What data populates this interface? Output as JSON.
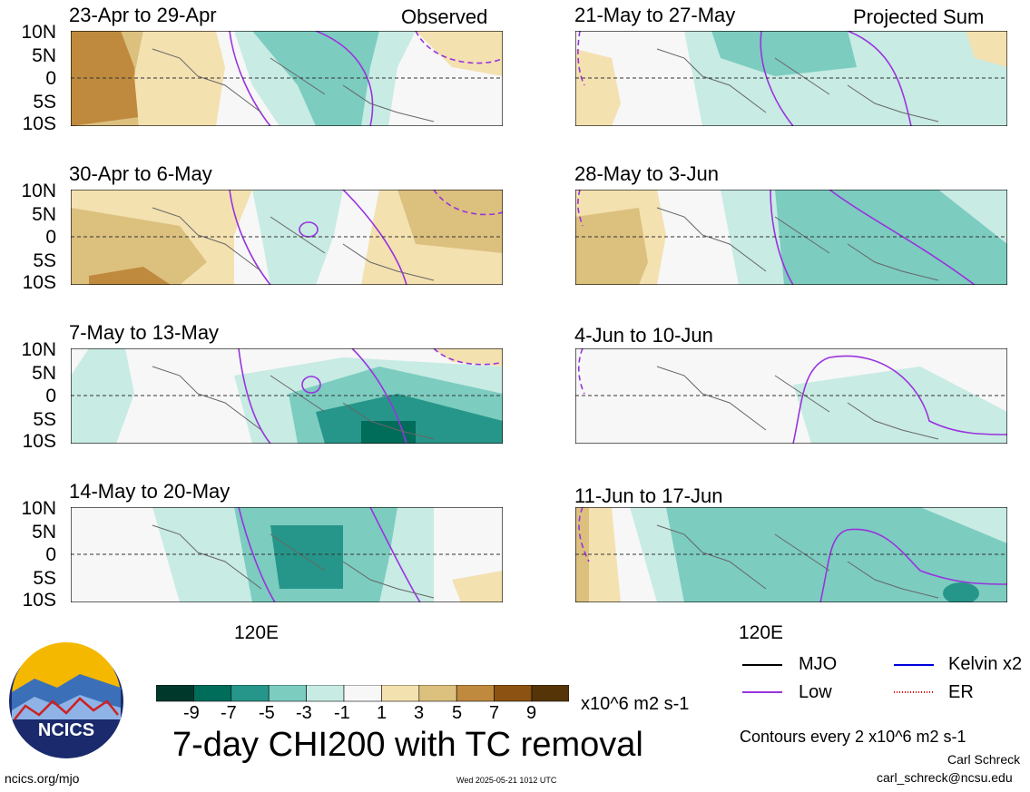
{
  "header": {
    "left_label": "Observed",
    "right_label": "Projected Sum"
  },
  "panels_left": [
    {
      "title": "23-Apr to 29-Apr"
    },
    {
      "title": "30-Apr to 6-May"
    },
    {
      "title": "7-May to 13-May"
    },
    {
      "title": "14-May to 20-May"
    }
  ],
  "panels_right": [
    {
      "title": "21-May to 27-May"
    },
    {
      "title": "28-May to 3-Jun"
    },
    {
      "title": "4-Jun to 10-Jun"
    },
    {
      "title": "11-Jun to 17-Jun"
    }
  ],
  "axis": {
    "lat_labels": [
      "10N",
      "5N",
      "0",
      "5S",
      "10S"
    ],
    "lon_label": "120E"
  },
  "colorbar": {
    "ticks": [
      "-9",
      "-7",
      "-5",
      "-3",
      "-1",
      "1",
      "3",
      "5",
      "7",
      "9"
    ],
    "colors": [
      "#00392c",
      "#006c5a",
      "#27968a",
      "#7cccc0",
      "#c8ebe4",
      "#f7f7f7",
      "#f4e1b0",
      "#dcc07e",
      "#bf8a3e",
      "#8c5212",
      "#553508"
    ],
    "units": "x10^6 m2 s-1"
  },
  "title": "7-day CHI200 with TC removal",
  "legend": [
    {
      "label": "MJO",
      "color": "#000000",
      "style": "solid"
    },
    {
      "label": "Kelvin x2",
      "color": "#0000dd",
      "style": "solid"
    },
    {
      "label": "Low",
      "color": "#9933dd",
      "style": "solid"
    },
    {
      "label": "ER",
      "color": "#dd0000",
      "style": "dotted"
    }
  ],
  "contours_note": "Contours every 2 x10^6 m2 s-1",
  "author": "Carl Schreck",
  "email": "carl_schreck@ncsu.edu",
  "logo_text": "NCICS",
  "url": "ncics.org/mjo",
  "timestamp": "Wed 2025-05-21 1012 UTC"
}
